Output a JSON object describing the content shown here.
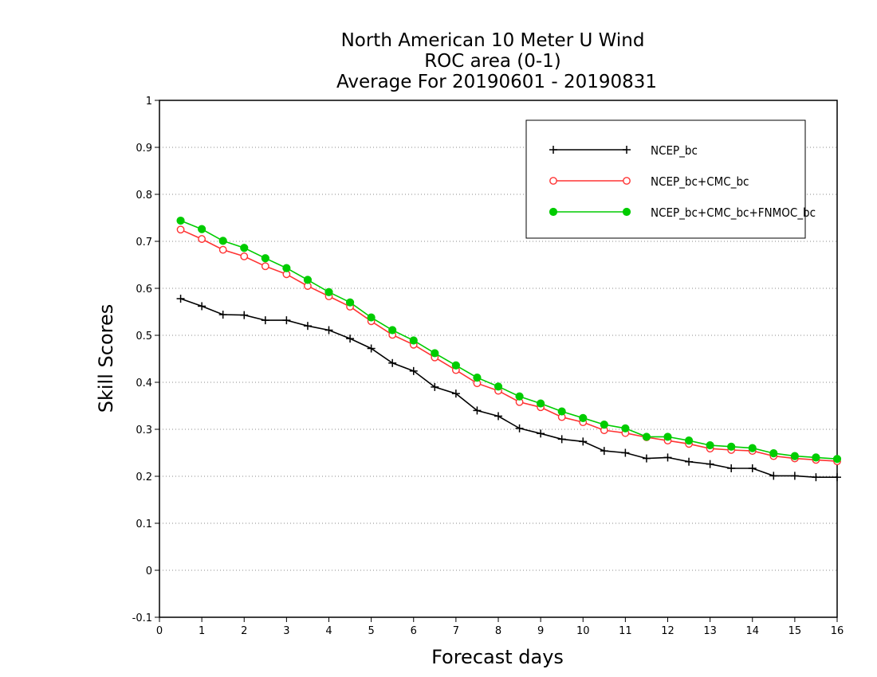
{
  "chart_data": {
    "type": "line",
    "title": [
      "North American 10 Meter U Wind",
      "ROC area (0-1)",
      "Average For 20190601 - 20190831"
    ],
    "xlabel": "Forecast days",
    "ylabel": "Skill Scores",
    "xlim": [
      0,
      16
    ],
    "ylim": [
      -0.1,
      1
    ],
    "xticks": [
      "0",
      "1",
      "2",
      "3",
      "4",
      "5",
      "6",
      "7",
      "8",
      "9",
      "10",
      "11",
      "12",
      "13",
      "14",
      "15",
      "16"
    ],
    "yticks": [
      "-0.1",
      "0",
      "0.1",
      "0.2",
      "0.3",
      "0.4",
      "0.5",
      "0.6",
      "0.7",
      "0.8",
      "0.9",
      "1"
    ],
    "grid": "dotted horizontal",
    "legend_position": "top-right",
    "x": [
      0.5,
      1,
      1.5,
      2,
      2.5,
      3,
      3.5,
      4,
      4.5,
      5,
      5.5,
      6,
      6.5,
      7,
      7.5,
      8,
      8.5,
      9,
      9.5,
      10,
      10.5,
      11,
      11.5,
      12,
      12.5,
      13,
      13.5,
      14,
      14.5,
      15,
      15.5,
      16
    ],
    "series": [
      {
        "name": "NCEP_bc",
        "color": "#000000",
        "marker": "plus",
        "values": [
          0.578,
          0.562,
          0.544,
          0.543,
          0.532,
          0.532,
          0.52,
          0.511,
          0.493,
          0.472,
          0.441,
          0.424,
          0.39,
          0.376,
          0.34,
          0.328,
          0.302,
          0.291,
          0.279,
          0.274,
          0.254,
          0.25,
          0.238,
          0.24,
          0.231,
          0.226,
          0.217,
          0.217,
          0.201,
          0.201,
          0.198,
          0.198
        ]
      },
      {
        "name": "NCEP_bc+CMC_bc",
        "color": "#ff3333",
        "marker": "open-circle",
        "values": [
          0.725,
          0.705,
          0.682,
          0.668,
          0.647,
          0.63,
          0.605,
          0.583,
          0.561,
          0.53,
          0.501,
          0.48,
          0.453,
          0.426,
          0.398,
          0.382,
          0.358,
          0.347,
          0.326,
          0.315,
          0.298,
          0.292,
          0.283,
          0.276,
          0.269,
          0.259,
          0.256,
          0.254,
          0.243,
          0.238,
          0.235,
          0.232
        ]
      },
      {
        "name": "NCEP_bc+CMC_bc+FNMOC_bc",
        "color": "#00cc00",
        "marker": "filled-circle",
        "values": [
          0.744,
          0.726,
          0.701,
          0.686,
          0.664,
          0.643,
          0.618,
          0.592,
          0.57,
          0.538,
          0.511,
          0.489,
          0.462,
          0.436,
          0.41,
          0.391,
          0.37,
          0.355,
          0.338,
          0.324,
          0.31,
          0.302,
          0.284,
          0.284,
          0.276,
          0.266,
          0.263,
          0.26,
          0.249,
          0.243,
          0.24,
          0.237
        ]
      }
    ]
  }
}
